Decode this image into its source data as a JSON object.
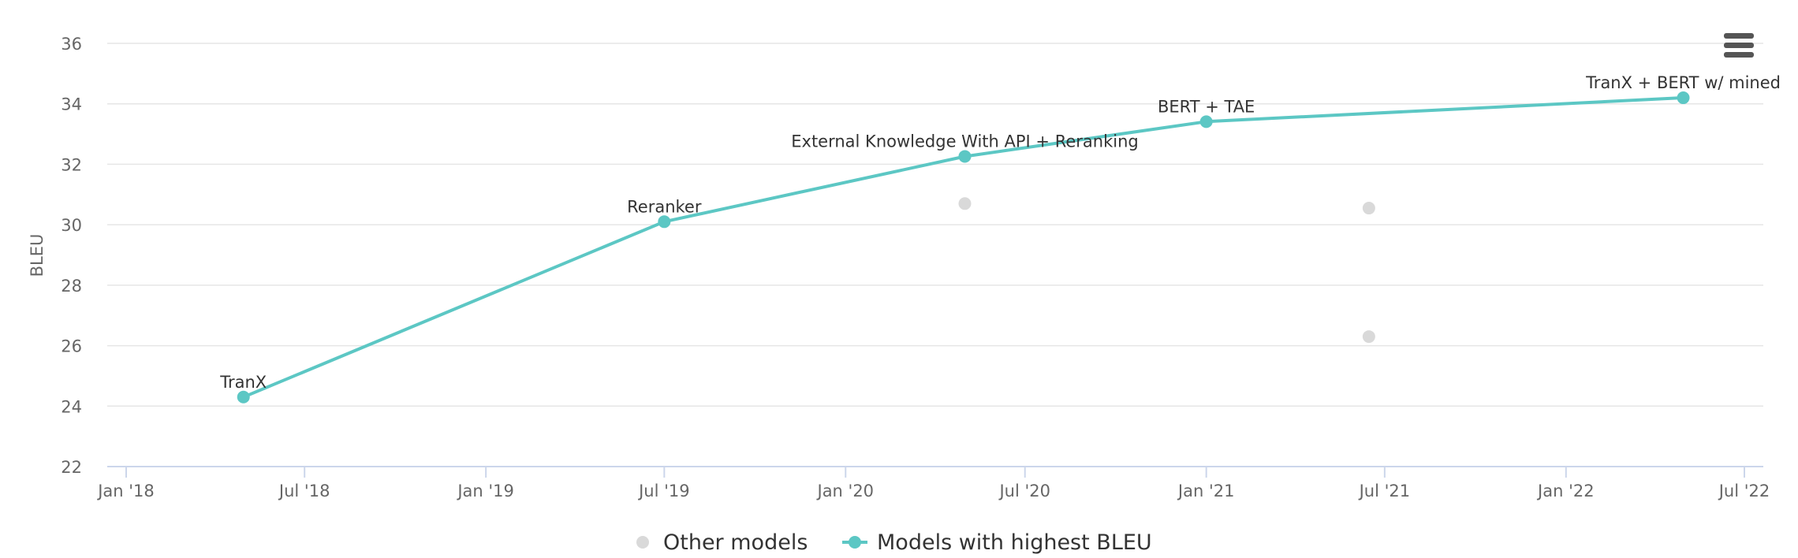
{
  "menu": {
    "icon": "hamburger-menu-icon"
  },
  "colors": {
    "highlight": "#5cc7c4",
    "other": "#d9d9d9",
    "grid": "#e6e6e6",
    "axis": "#ccd6eb"
  },
  "chart_data": {
    "type": "line",
    "ylabel": "BLEU",
    "ylim": [
      22,
      36
    ],
    "yticks": [
      "22",
      "24",
      "26",
      "28",
      "30",
      "32",
      "34",
      "36"
    ],
    "xlim": [
      "2018-01-01",
      "2022-07-01"
    ],
    "xticks": [
      {
        "date": "2018-01-01",
        "label": "Jan '18"
      },
      {
        "date": "2018-07-01",
        "label": "Jul '18"
      },
      {
        "date": "2019-01-01",
        "label": "Jan '19"
      },
      {
        "date": "2019-07-01",
        "label": "Jul '19"
      },
      {
        "date": "2020-01-01",
        "label": "Jan '20"
      },
      {
        "date": "2020-07-01",
        "label": "Jul '20"
      },
      {
        "date": "2021-01-01",
        "label": "Jan '21"
      },
      {
        "date": "2021-07-01",
        "label": "Jul '21"
      },
      {
        "date": "2022-01-01",
        "label": "Jan '22"
      },
      {
        "date": "2022-07-01",
        "label": "Jul '22"
      }
    ],
    "grid": true,
    "legend_position": "bottom-center",
    "series": [
      {
        "name": "Other models",
        "type": "scatter",
        "points": [
          {
            "x": "2020-05-01",
            "y": 30.7
          },
          {
            "x": "2021-06-15",
            "y": 30.55
          },
          {
            "x": "2021-06-15",
            "y": 26.3
          }
        ]
      },
      {
        "name": "Models with highest BLEU",
        "type": "line",
        "points": [
          {
            "x": "2018-04-30",
            "y": 24.3,
            "label": "TranX"
          },
          {
            "x": "2019-07-01",
            "y": 30.1,
            "label": "Reranker"
          },
          {
            "x": "2020-05-01",
            "y": 32.26,
            "label": "External Knowledge With API + Reranking"
          },
          {
            "x": "2021-01-01",
            "y": 33.41,
            "label": "BERT + TAE"
          },
          {
            "x": "2022-04-30",
            "y": 34.2,
            "label": "TranX + BERT w/ mined"
          }
        ]
      }
    ]
  }
}
